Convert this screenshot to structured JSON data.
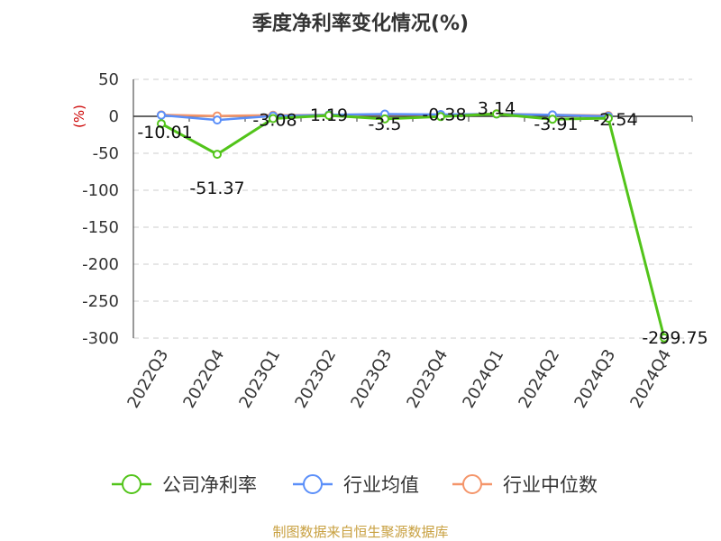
{
  "chart_data": {
    "type": "line",
    "title": "季度净利率变化情况(%)",
    "ylabel": "(%)",
    "categories": [
      "2022Q3",
      "2022Q4",
      "2023Q1",
      "2023Q2",
      "2023Q3",
      "2023Q4",
      "2024Q1",
      "2024Q2",
      "2024Q3",
      "2024Q4"
    ],
    "ylim": [
      -300,
      50
    ],
    "yticks": [
      50,
      0,
      -50,
      -100,
      -150,
      -200,
      -250,
      -300
    ],
    "grid": true,
    "legend_position": "bottom",
    "series": [
      {
        "name": "公司净利率",
        "color": "#52c41a",
        "values": [
          -10.01,
          -51.37,
          -3.08,
          1.19,
          -3.5,
          -0.38,
          3.14,
          -3.91,
          -2.54,
          -299.75
        ],
        "labels": [
          "-10.01",
          "-51.37",
          "-3.08",
          "1.19",
          "-3.5",
          "-0.38",
          "3.14",
          "-3.91",
          "-2.54",
          "-299.75"
        ]
      },
      {
        "name": "行业均值",
        "color": "#5b8ff9",
        "values": [
          1.5,
          -5,
          0.5,
          2,
          3,
          2.5,
          3,
          2,
          0,
          null
        ]
      },
      {
        "name": "行业中位数",
        "color": "#f4956a",
        "values": [
          2,
          0.5,
          1.5,
          2,
          2.5,
          2,
          3.5,
          2,
          1,
          null
        ]
      }
    ]
  },
  "source": "制图数据来自恒生聚源数据库"
}
